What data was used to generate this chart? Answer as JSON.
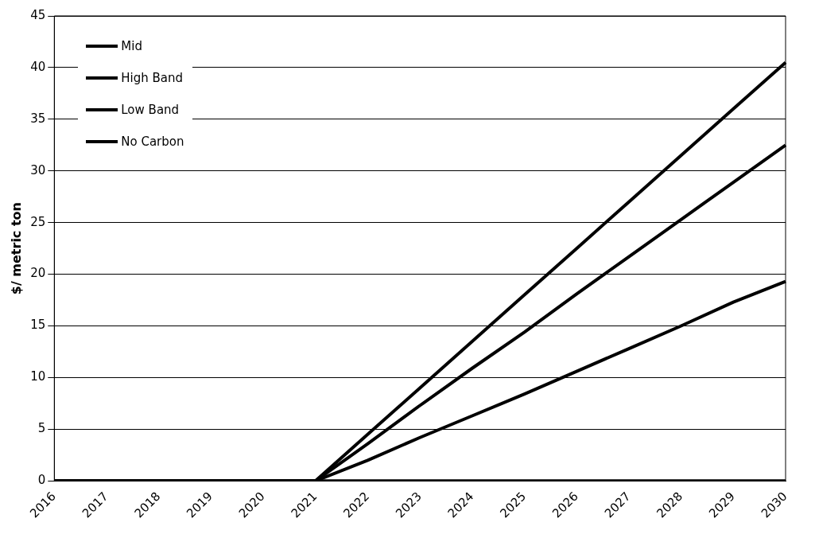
{
  "chart_data": {
    "type": "line",
    "ylabel": "$/ metric ton",
    "categories": [
      "2016",
      "2017",
      "2018",
      "2019",
      "2020",
      "2021",
      "2022",
      "2023",
      "2024",
      "2025",
      "2026",
      "2027",
      "2028",
      "2029",
      "2030"
    ],
    "series": [
      {
        "name": "Mid",
        "color": "#000000",
        "values": [
          0,
          0,
          0,
          0,
          0,
          0,
          4.5,
          9,
          13.5,
          18,
          22.5,
          27,
          31.5,
          36,
          40.5
        ]
      },
      {
        "name": "High Band",
        "color": "#000000",
        "values": [
          0,
          0,
          0,
          0,
          0,
          0,
          3.6,
          7.3,
          10.9,
          14.4,
          18.1,
          21.7,
          25.3,
          28.9,
          32.5
        ]
      },
      {
        "name": "Low Band",
        "color": "#000000",
        "values": [
          0,
          0,
          0,
          0,
          0,
          0,
          2,
          4.2,
          6.3,
          8.4,
          10.6,
          12.8,
          15,
          17.3,
          19.3
        ]
      },
      {
        "name": "No Carbon",
        "color": "#000000",
        "values": [
          0,
          0,
          0,
          0,
          0,
          0,
          0,
          0,
          0,
          0,
          0,
          0,
          0,
          0,
          0
        ]
      }
    ],
    "ylim": [
      0,
      45
    ],
    "yticks": [
      0,
      5,
      10,
      15,
      20,
      25,
      30,
      35,
      40,
      45
    ],
    "grid": "y",
    "legend": "top left",
    "marker": "none",
    "line_style": "solid"
  }
}
